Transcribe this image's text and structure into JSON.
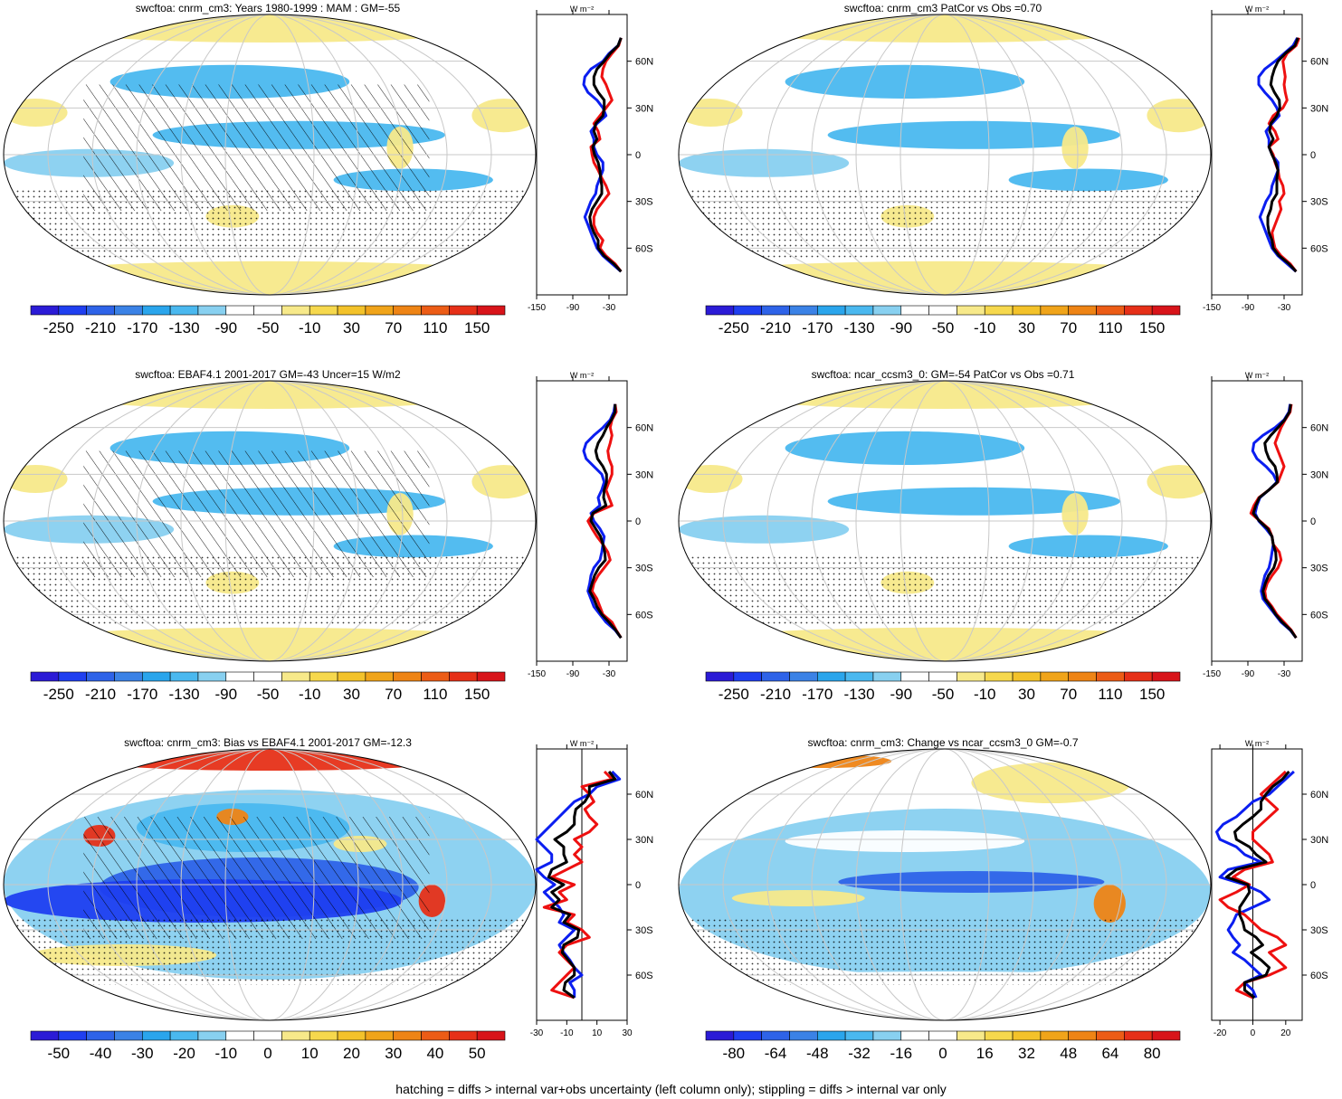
{
  "footer": "hatching = diffs > internal var+obs uncertainty (left column only); stippling = diffs > internal var only",
  "colors": {
    "scale": [
      "#2b1bd6",
      "#1f3ff0",
      "#2e63e8",
      "#3b82e6",
      "#2aa5ec",
      "#4ab8ef",
      "#88d0f0",
      "#ffffff",
      "#ffffff",
      "#f7e98a",
      "#f6d84d",
      "#f3c22a",
      "#f0a41a",
      "#ee8415",
      "#ec5c16",
      "#e63018",
      "#d8141a"
    ],
    "obs": "#0b1ef0",
    "model": "#ee1010",
    "mean": "#000000"
  },
  "units": "W m⁻²",
  "chart_data": [
    {
      "type": "heatmap",
      "title": "swcftoa: cnrm_cm3: Years 1980-1999 : MAM : GM=-55",
      "colorbar_labels": [
        "-250",
        "-210",
        "-170",
        "-130",
        "-90",
        "-50",
        "-10",
        "30",
        "70",
        "110",
        "150"
      ],
      "zonal": {
        "xlim": [
          -150,
          0
        ],
        "xticks": [
          "-150",
          "-90",
          "-30"
        ],
        "yticks": [
          "60N",
          "30N",
          "0",
          "30S",
          "60S"
        ],
        "lat": [
          75,
          70,
          65,
          60,
          55,
          50,
          45,
          40,
          35,
          30,
          25,
          20,
          15,
          10,
          5,
          0,
          -5,
          -10,
          -15,
          -20,
          -25,
          -30,
          -35,
          -40,
          -45,
          -50,
          -55,
          -60,
          -65,
          -70,
          -75
        ],
        "obs": [
          -10,
          -15,
          -30,
          -40,
          -60,
          -70,
          -72,
          -65,
          -50,
          -40,
          -35,
          -50,
          -60,
          -55,
          -55,
          -50,
          -40,
          -40,
          -45,
          -50,
          -52,
          -60,
          -65,
          -70,
          -65,
          -60,
          -55,
          -50,
          -40,
          -25,
          -10
        ],
        "model": [
          -10,
          -14,
          -25,
          -35,
          -40,
          -42,
          -35,
          -30,
          -25,
          -35,
          -45,
          -55,
          -48,
          -45,
          -60,
          -58,
          -55,
          -48,
          -42,
          -35,
          -30,
          -40,
          -50,
          -55,
          -55,
          -50,
          -40,
          -45,
          -35,
          -20,
          -10
        ],
        "mean": [
          -10,
          -15,
          -28,
          -38,
          -50,
          -55,
          -55,
          -48,
          -38,
          -38,
          -40,
          -52,
          -55,
          -50,
          -57,
          -54,
          -48,
          -45,
          -44,
          -42,
          -42,
          -50,
          -58,
          -62,
          -60,
          -55,
          -48,
          -48,
          -38,
          -22,
          -10
        ]
      }
    },
    {
      "type": "heatmap",
      "title": "swcftoa: cnrm_cm3 PatCor vs Obs =0.70",
      "colorbar_labels": [
        "-250",
        "-210",
        "-170",
        "-130",
        "-90",
        "-50",
        "-10",
        "30",
        "70",
        "110",
        "150"
      ],
      "zonal": {
        "xlim": [
          -150,
          0
        ],
        "xticks": [
          "-150",
          "-90",
          "-30"
        ],
        "yticks": [
          "60N",
          "30N",
          "0",
          "30S",
          "60S"
        ],
        "lat": [
          75,
          70,
          65,
          60,
          55,
          50,
          45,
          40,
          35,
          30,
          25,
          20,
          15,
          10,
          5,
          0,
          -5,
          -10,
          -15,
          -20,
          -25,
          -30,
          -35,
          -40,
          -45,
          -50,
          -55,
          -60,
          -65,
          -70,
          -75
        ],
        "obs": [
          -8,
          -15,
          -30,
          -45,
          -62,
          -72,
          -72,
          -62,
          -50,
          -42,
          -38,
          -50,
          -60,
          -55,
          -55,
          -50,
          -40,
          -40,
          -45,
          -50,
          -52,
          -60,
          -65,
          -70,
          -65,
          -60,
          -55,
          -50,
          -40,
          -25,
          -10
        ],
        "model": [
          -5,
          -10,
          -25,
          -32,
          -30,
          -28,
          -30,
          -28,
          -25,
          -32,
          -48,
          -55,
          -45,
          -40,
          -55,
          -48,
          -45,
          -40,
          -38,
          -32,
          -30,
          -38,
          -35,
          -40,
          -45,
          -50,
          -48,
          -45,
          -35,
          -20,
          -10
        ],
        "mean": [
          -7,
          -12,
          -28,
          -40,
          -46,
          -50,
          -52,
          -46,
          -38,
          -37,
          -42,
          -52,
          -54,
          -48,
          -55,
          -50,
          -44,
          -40,
          -42,
          -42,
          -42,
          -50,
          -52,
          -57,
          -57,
          -55,
          -50,
          -48,
          -38,
          -22,
          -10
        ]
      }
    },
    {
      "type": "heatmap",
      "title": "swcftoa: EBAF4.1 2001-2017 GM=-43 Uncer=15 W/m2",
      "colorbar_labels": [
        "-250",
        "-210",
        "-170",
        "-130",
        "-90",
        "-50",
        "-10",
        "30",
        "70",
        "110",
        "150"
      ],
      "zonal": {
        "xlim": [
          -150,
          0
        ],
        "xticks": [
          "-150",
          "-90",
          "-30"
        ],
        "yticks": [
          "60N",
          "30N",
          "0",
          "30S",
          "60S"
        ],
        "lat": [
          75,
          70,
          65,
          60,
          55,
          50,
          45,
          40,
          35,
          30,
          25,
          20,
          15,
          10,
          5,
          0,
          -5,
          -10,
          -15,
          -20,
          -25,
          -30,
          -35,
          -40,
          -45,
          -50,
          -55,
          -60,
          -65,
          -70,
          -75
        ],
        "obs": [
          -20,
          -22,
          -28,
          -40,
          -55,
          -68,
          -72,
          -68,
          -55,
          -42,
          -38,
          -42,
          -48,
          -45,
          -60,
          -55,
          -45,
          -38,
          -40,
          -42,
          -45,
          -55,
          -60,
          -62,
          -65,
          -60,
          -55,
          -45,
          -35,
          -20,
          -10
        ],
        "model": [
          -20,
          -18,
          -25,
          -28,
          -25,
          -28,
          -32,
          -30,
          -25,
          -25,
          -30,
          -35,
          -30,
          -25,
          -55,
          -65,
          -58,
          -50,
          -40,
          -32,
          -28,
          -38,
          -48,
          -55,
          -58,
          -50,
          -45,
          -40,
          -25,
          -18,
          -10
        ],
        "mean": [
          -20,
          -20,
          -26,
          -34,
          -40,
          -48,
          -52,
          -49,
          -40,
          -34,
          -34,
          -38,
          -39,
          -35,
          -57,
          -60,
          -52,
          -44,
          -40,
          -37,
          -36,
          -47,
          -54,
          -58,
          -62,
          -55,
          -50,
          -42,
          -30,
          -19,
          -10
        ]
      }
    },
    {
      "type": "heatmap",
      "title": "swcftoa: ncar_ccsm3_0: GM=-54 PatCor vs Obs =0.71",
      "colorbar_labels": [
        "-250",
        "-210",
        "-170",
        "-130",
        "-90",
        "-50",
        "-10",
        "30",
        "70",
        "110",
        "150"
      ],
      "zonal": {
        "xlim": [
          -150,
          0
        ],
        "xticks": [
          "-150",
          "-90",
          "-30"
        ],
        "yticks": [
          "60N",
          "30N",
          "0",
          "30S",
          "60S"
        ],
        "lat": [
          75,
          70,
          65,
          60,
          55,
          50,
          45,
          40,
          35,
          30,
          25,
          20,
          15,
          10,
          5,
          0,
          -5,
          -10,
          -15,
          -20,
          -25,
          -30,
          -35,
          -40,
          -45,
          -50,
          -55,
          -60,
          -65,
          -70,
          -75
        ],
        "obs": [
          -20,
          -22,
          -30,
          -45,
          -65,
          -80,
          -82,
          -75,
          -60,
          -48,
          -42,
          -55,
          -70,
          -75,
          -78,
          -72,
          -60,
          -50,
          -48,
          -50,
          -52,
          -55,
          -62,
          -65,
          -68,
          -65,
          -55,
          -45,
          -35,
          -20,
          -10
        ],
        "model": [
          -18,
          -20,
          -28,
          -35,
          -40,
          -45,
          -40,
          -35,
          -30,
          -35,
          -40,
          -55,
          -72,
          -80,
          -85,
          -70,
          -55,
          -50,
          -48,
          -38,
          -35,
          -40,
          -50,
          -58,
          -62,
          -60,
          -50,
          -42,
          -30,
          -18,
          -10
        ],
        "mean": [
          -19,
          -21,
          -29,
          -40,
          -52,
          -62,
          -60,
          -55,
          -45,
          -42,
          -41,
          -55,
          -71,
          -77,
          -81,
          -71,
          -57,
          -50,
          -48,
          -44,
          -43,
          -47,
          -56,
          -61,
          -65,
          -62,
          -52,
          -44,
          -33,
          -19,
          -10
        ]
      }
    },
    {
      "type": "heatmap",
      "title": "swcftoa: cnrm_cm3: Bias vs EBAF4.1 2001-2017 GM=-12.3",
      "colorbar_labels": [
        "-50",
        "-40",
        "-30",
        "-20",
        "-10",
        "0",
        "10",
        "20",
        "30",
        "40",
        "50"
      ],
      "zonal": {
        "xlim": [
          -30,
          30
        ],
        "xticks": [
          "-30",
          "-10",
          "10",
          "30"
        ],
        "yticks": [
          "60N",
          "30N",
          "0",
          "30S",
          "60S"
        ],
        "lat": [
          75,
          70,
          65,
          60,
          55,
          50,
          45,
          40,
          35,
          30,
          25,
          20,
          15,
          10,
          5,
          0,
          -5,
          -10,
          -15,
          -20,
          -25,
          -30,
          -35,
          -40,
          -45,
          -50,
          -55,
          -60,
          -65,
          -70,
          -75
        ],
        "obs": [
          20,
          25,
          10,
          5,
          -5,
          -10,
          -15,
          -20,
          -25,
          -30,
          -25,
          -20,
          -20,
          -30,
          -25,
          -18,
          -25,
          -20,
          -15,
          -12,
          -15,
          -5,
          -10,
          -15,
          -12,
          -8,
          -5,
          0,
          -8,
          -5,
          -5
        ],
        "model": [
          15,
          20,
          0,
          5,
          8,
          2,
          5,
          10,
          5,
          -5,
          0,
          -5,
          0,
          -10,
          -20,
          -5,
          -15,
          -10,
          -25,
          -5,
          -10,
          0,
          5,
          -10,
          -15,
          -10,
          -5,
          -10,
          -15,
          -20,
          -5
        ],
        "mean": [
          18,
          22,
          5,
          5,
          2,
          -4,
          -5,
          -5,
          -10,
          -18,
          -12,
          -12,
          -10,
          -20,
          -22,
          -12,
          -20,
          -15,
          -20,
          -8,
          -12,
          -2,
          -3,
          -12,
          -13,
          -9,
          -5,
          -5,
          -11,
          -12,
          -5
        ]
      }
    },
    {
      "type": "heatmap",
      "title": "swcftoa: cnrm_cm3: Change vs ncar_ccsm3_0 GM=-0.7",
      "colorbar_labels": [
        "-80",
        "-64",
        "-48",
        "-32",
        "-16",
        "0",
        "16",
        "32",
        "48",
        "64",
        "80"
      ],
      "zonal": {
        "xlim": [
          -25,
          30
        ],
        "xticks": [
          "-20",
          "0",
          "20"
        ],
        "yticks": [
          "60N",
          "30N",
          "0",
          "30S",
          "60S"
        ],
        "lat": [
          75,
          70,
          65,
          60,
          55,
          50,
          45,
          40,
          35,
          30,
          25,
          20,
          15,
          10,
          5,
          0,
          -5,
          -10,
          -15,
          -20,
          -25,
          -30,
          -35,
          -40,
          -45,
          -50,
          -55,
          -60,
          -65,
          -70,
          -75
        ],
        "obs": [
          25,
          20,
          15,
          10,
          0,
          -5,
          -10,
          -18,
          -22,
          -20,
          -10,
          -5,
          5,
          -15,
          -20,
          -5,
          5,
          10,
          0,
          -10,
          -12,
          -15,
          -12,
          -8,
          -12,
          -5,
          0,
          5,
          -5,
          0,
          2
        ],
        "model": [
          20,
          15,
          10,
          5,
          10,
          15,
          10,
          5,
          0,
          0,
          5,
          10,
          12,
          -5,
          -12,
          -2,
          -10,
          -20,
          -15,
          -5,
          0,
          5,
          15,
          20,
          10,
          15,
          20,
          10,
          -5,
          -10,
          0
        ],
        "mean": [
          22,
          18,
          12,
          8,
          5,
          5,
          0,
          -6,
          -11,
          -10,
          -2,
          2,
          8,
          -10,
          -16,
          -3,
          -2,
          -5,
          -8,
          -8,
          -6,
          -5,
          2,
          6,
          -1,
          5,
          10,
          8,
          -5,
          -5,
          1
        ]
      }
    }
  ]
}
